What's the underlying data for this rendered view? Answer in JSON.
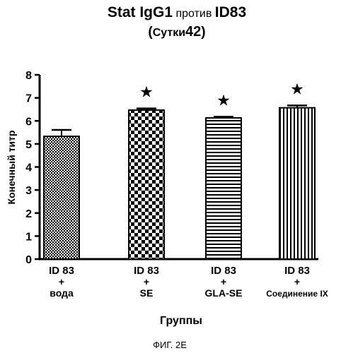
{
  "chart_data": {
    "type": "bar",
    "title_line1_bold_a": "Stat IgG1",
    "title_line1_normal": " против ",
    "title_line1_bold_b": "ID83",
    "title_line2_paren_open": "(",
    "title_line2_word": "Сутки",
    "title_line2_num": "42",
    "title_line2_paren_close": ")",
    "ylabel": "Конечный титр",
    "xlabel": "Группы",
    "ylim": [
      0,
      8
    ],
    "yticks": [
      "0",
      "1",
      "2",
      "3",
      "4",
      "5",
      "6",
      "7",
      "8"
    ],
    "categories": [
      {
        "line1": "ID 83",
        "line2": "+",
        "line3": "вода"
      },
      {
        "line1": "ID 83",
        "line2": "+",
        "line3": "SE"
      },
      {
        "line1": "ID 83",
        "line2": "+",
        "line3": "GLA-SE"
      },
      {
        "line1": "ID 83",
        "line2": "+",
        "line3": "Соединение IX"
      }
    ],
    "values": [
      5.33,
      6.47,
      6.13,
      6.57
    ],
    "errors": [
      0.28,
      0.07,
      0.05,
      0.1
    ],
    "significance": [
      "",
      "★",
      "★",
      "★"
    ],
    "patterns": [
      "dots",
      "checker",
      "horizontal-stripes",
      "vertical-stripes"
    ]
  },
  "caption": "ФИГ. 2Е"
}
